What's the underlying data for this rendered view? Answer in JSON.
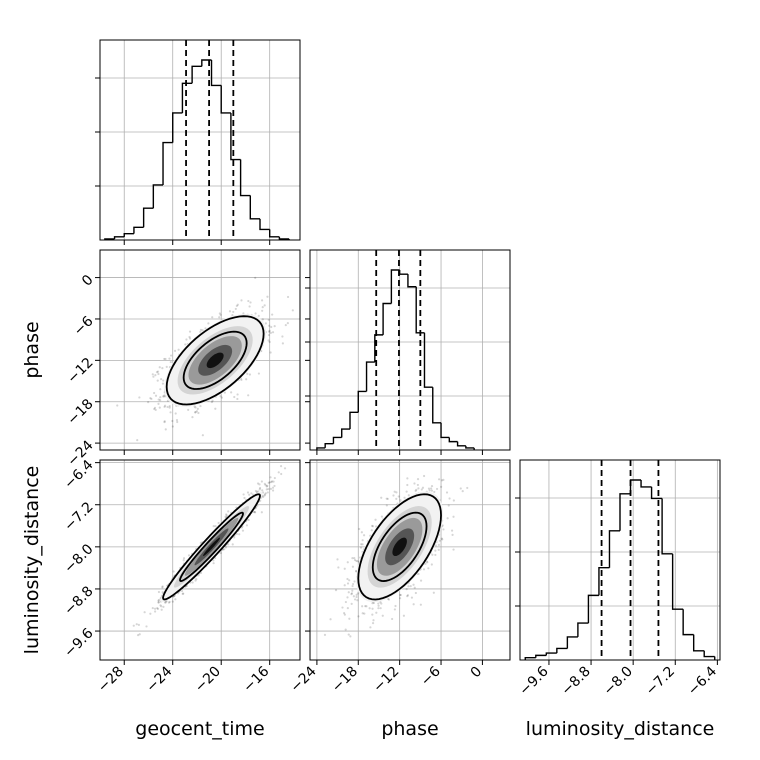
{
  "chart_data": {
    "type": "corner",
    "parameters": [
      "geocent_time",
      "phase",
      "luminosity_distance"
    ],
    "axis_labels": {
      "geocent_time": "geocent_time",
      "phase": "phase",
      "luminosity_distance": "luminosity_distance"
    },
    "ranges": {
      "geocent_time": [
        -30,
        -13.5
      ],
      "phase": [
        -25,
        4
      ],
      "luminosity_distance": [
        -10.15,
        -6.35
      ]
    },
    "ticks": {
      "geocent_time": [
        -28,
        -24,
        -20,
        -16
      ],
      "phase": [
        -24,
        -18,
        -12,
        -6,
        0
      ],
      "luminosity_distance": [
        -9.6,
        -8.8,
        -8.0,
        -7.2,
        -6.4
      ]
    },
    "tick_labels": {
      "geocent_time": [
        "−28",
        "−24",
        "−20",
        "−16"
      ],
      "phase": [
        "−24",
        "−18",
        "−12",
        "−6",
        "0"
      ],
      "luminosity_distance": [
        "−9.6",
        "−8.8",
        "−8.0",
        "−7.2",
        "−6.4"
      ]
    },
    "quantiles": {
      "geocent_time": [
        -22.9,
        -21.0,
        -19.0
      ],
      "phase": [
        -15.4,
        -12.1,
        -9.0
      ],
      "luminosity_distance": [
        -8.6,
        -8.05,
        -7.52
      ]
    },
    "histograms": {
      "geocent_time": {
        "bin_edges": [
          -29.6,
          -28.8,
          -28.0,
          -27.2,
          -26.4,
          -25.6,
          -24.8,
          -24.0,
          -23.2,
          -22.4,
          -21.6,
          -20.8,
          -20.0,
          -19.2,
          -18.4,
          -17.6,
          -16.8,
          -16.0,
          -15.2,
          -14.4
        ],
        "counts": [
          0.5,
          1.5,
          3,
          6,
          15,
          26,
          46,
          60,
          74,
          82,
          85,
          73,
          60,
          38,
          21,
          10,
          5,
          1.5,
          0.5
        ]
      },
      "phase": {
        "bin_edges": [
          -24.0,
          -22.8,
          -21.6,
          -20.4,
          -19.2,
          -18.0,
          -16.8,
          -15.6,
          -14.4,
          -13.2,
          -12.0,
          -10.8,
          -9.6,
          -8.4,
          -7.2,
          -6.0,
          -4.8,
          -3.6,
          -2.4,
          -1.2
        ],
        "counts": [
          1,
          3,
          6,
          10,
          18,
          28,
          42,
          55,
          70,
          86,
          84,
          78,
          56,
          30,
          13,
          6,
          4,
          2,
          1
        ]
      },
      "luminosity_distance": {
        "bin_edges": [
          -10.05,
          -9.85,
          -9.65,
          -9.45,
          -9.25,
          -9.05,
          -8.85,
          -8.65,
          -8.45,
          -8.25,
          -8.05,
          -7.85,
          -7.65,
          -7.45,
          -7.25,
          -7.05,
          -6.85,
          -6.65,
          -6.45
        ],
        "counts": [
          1,
          2,
          3,
          5,
          10,
          16,
          28,
          40,
          56,
          72,
          78,
          75,
          70,
          46,
          22,
          11,
          4,
          1.5
        ]
      }
    },
    "joint_distributions": [
      {
        "x": "geocent_time",
        "y": "phase",
        "mean": [
          -20.5,
          -12.0
        ],
        "std": [
          2.0,
          3.2
        ],
        "correlation": 0.6,
        "contour_levels_sigma": [
          1,
          2
        ]
      },
      {
        "x": "geocent_time",
        "y": "luminosity_distance",
        "mean": [
          -20.8,
          -8.0
        ],
        "std": [
          2.0,
          0.5
        ],
        "correlation": 0.97,
        "contour_levels_sigma": [
          1,
          2
        ]
      },
      {
        "x": "phase",
        "y": "luminosity_distance",
        "mean": [
          -12.0,
          -8.0
        ],
        "std": [
          3.0,
          0.5
        ],
        "correlation": 0.6,
        "contour_levels_sigma": [
          1,
          2
        ]
      }
    ],
    "grid": true,
    "legend": "none"
  }
}
